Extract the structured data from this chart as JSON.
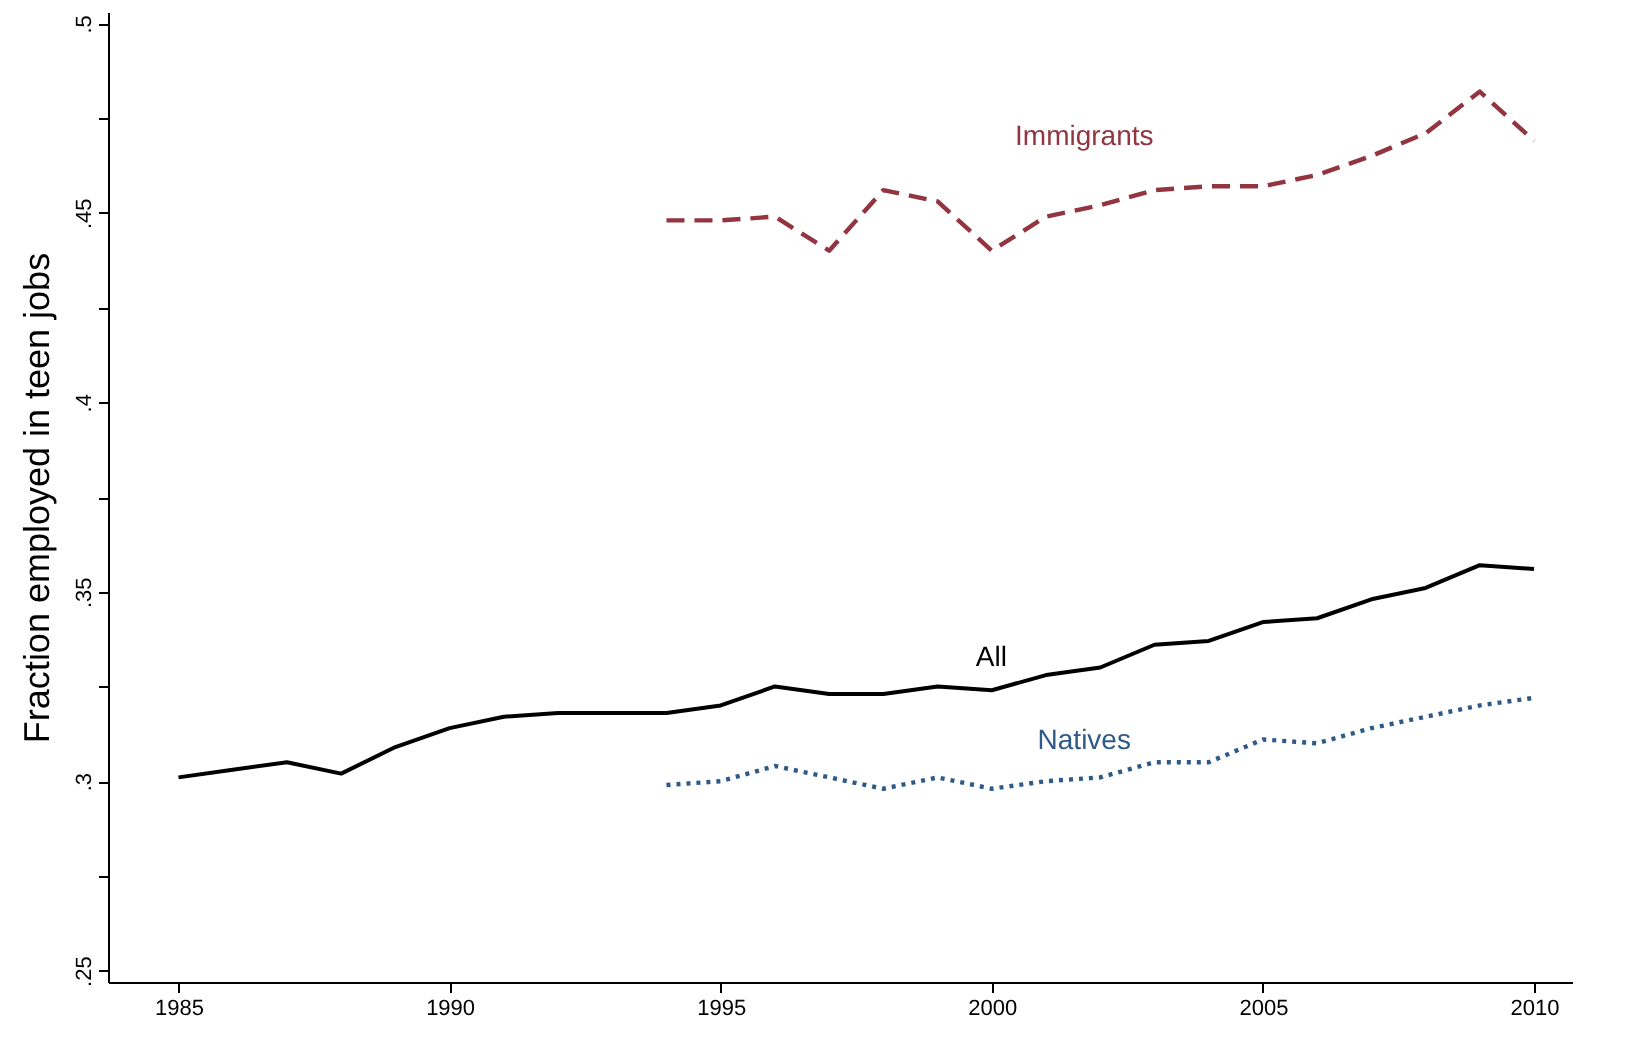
{
  "chart_data": {
    "type": "line",
    "ylabel": "Fraction employed in teen jobs",
    "x": [
      1985,
      1986,
      1987,
      1988,
      1989,
      1990,
      1991,
      1992,
      1993,
      1994,
      1995,
      1996,
      1997,
      1998,
      1999,
      2000,
      2001,
      2002,
      2003,
      2004,
      2005,
      2006,
      2007,
      2008,
      2009,
      2010
    ],
    "series": [
      {
        "name": "Immigrants",
        "color": "#923540",
        "line_style": "dashed",
        "values": [
          null,
          null,
          null,
          null,
          null,
          null,
          null,
          null,
          null,
          0.448,
          0.448,
          0.449,
          0.44,
          0.456,
          0.453,
          0.44,
          0.449,
          0.452,
          0.456,
          0.457,
          0.457,
          0.46,
          0.465,
          0.471,
          0.482,
          0.469
        ]
      },
      {
        "name": "All",
        "color": "#000000",
        "line_style": "solid",
        "values": [
          0.301,
          0.303,
          0.305,
          0.302,
          0.309,
          0.314,
          0.317,
          0.318,
          0.318,
          0.318,
          0.32,
          0.325,
          0.323,
          0.323,
          0.325,
          0.324,
          0.328,
          0.33,
          0.336,
          0.337,
          0.342,
          0.343,
          0.348,
          0.351,
          0.357,
          0.356
        ]
      },
      {
        "name": "Natives",
        "color": "#2e5a87",
        "line_style": "dotted",
        "values": [
          null,
          null,
          null,
          null,
          null,
          null,
          null,
          null,
          null,
          0.299,
          0.3,
          0.304,
          0.301,
          0.298,
          0.301,
          0.298,
          0.3,
          0.301,
          0.305,
          0.305,
          0.311,
          0.31,
          0.314,
          0.317,
          0.32,
          0.322
        ]
      }
    ],
    "xlim": [
      1983.7,
      2010.7
    ],
    "xticks": [
      1985,
      1990,
      1995,
      2000,
      2005,
      2010
    ],
    "ylim": [
      0.247,
      0.503
    ],
    "yticks": [
      {
        "value": 0.25,
        "label": ".25"
      },
      {
        "value": 0.275,
        "label": null
      },
      {
        "value": 0.3,
        "label": ".3"
      },
      {
        "value": 0.325,
        "label": null
      },
      {
        "value": 0.35,
        "label": ".35"
      },
      {
        "value": 0.375,
        "label": null
      },
      {
        "value": 0.4,
        "label": ".4"
      },
      {
        "value": 0.425,
        "label": null
      },
      {
        "value": 0.45,
        "label": ".45"
      },
      {
        "value": 0.475,
        "label": null
      },
      {
        "value": 0.5,
        "label": ".5"
      }
    ],
    "grid": false,
    "marker": "none"
  }
}
